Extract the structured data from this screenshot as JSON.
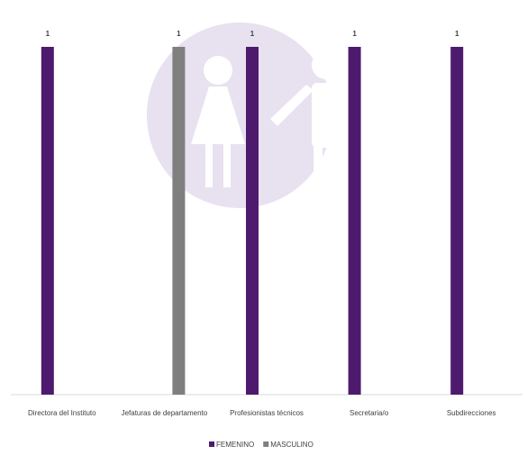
{
  "chart_data": {
    "type": "bar",
    "categories": [
      "Directora del Instituto",
      "Jefaturas de departamento",
      "Profesionistas técnicos",
      "Secretaria/o",
      "Subdirecciones"
    ],
    "series": [
      {
        "name": "FEMENINO",
        "color": "#4e1a6e",
        "values": [
          1,
          null,
          1,
          1,
          1
        ]
      },
      {
        "name": "MASCULINO",
        "color": "#7f7f7f",
        "values": [
          null,
          1,
          null,
          null,
          null
        ]
      }
    ],
    "ylim": [
      0,
      1
    ]
  }
}
